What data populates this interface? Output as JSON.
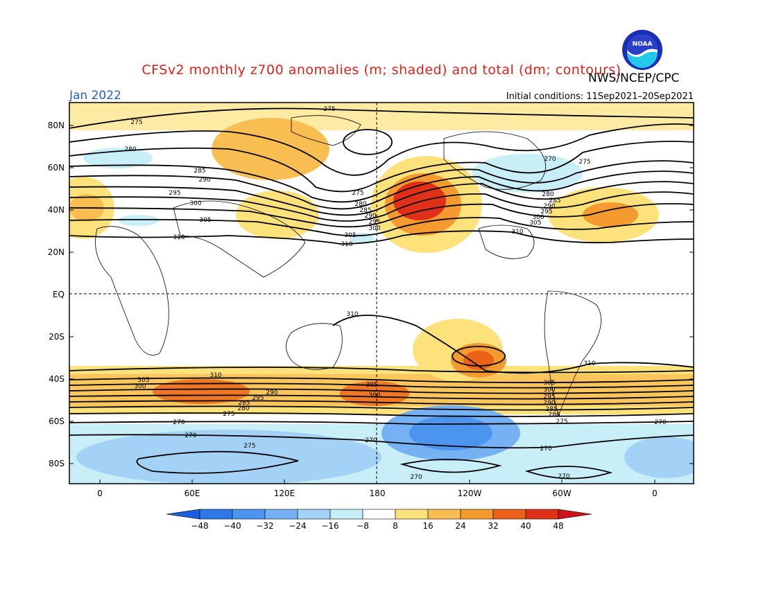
{
  "title": "CFSv2 monthly z700 anomalies (m; shaded) and total (dm; contours)",
  "org": "NWS/NCEP/CPC",
  "logo_text": "NOAA",
  "period": "Jan 2022",
  "initial_conditions": "Initial conditions: 11Sep2021–20Sep2021",
  "lat_labels": [
    "80N",
    "60N",
    "40N",
    "20N",
    "EQ",
    "20S",
    "40S",
    "60S",
    "80S"
  ],
  "lon_labels": [
    "0",
    "60E",
    "120E",
    "180",
    "120W",
    "60W",
    "0"
  ],
  "colorbar": {
    "ticks": [
      "−48",
      "−40",
      "−32",
      "−24",
      "−16",
      "−8",
      "8",
      "16",
      "24",
      "32",
      "40",
      "48"
    ],
    "colors": [
      "#1b5fe0",
      "#2f78e8",
      "#4b95ee",
      "#76b2f3",
      "#a4d2f7",
      "#c8eef8",
      "#ffffff",
      "#fde27c",
      "#f9be52",
      "#f49a2e",
      "#ec6218",
      "#e0301a",
      "#c8141a"
    ]
  },
  "contour_labels": {
    "nh": [
      "275",
      "280",
      "285",
      "290",
      "295",
      "300",
      "305",
      "310"
    ],
    "sh": [
      "310",
      "305",
      "300",
      "295",
      "290",
      "285",
      "280",
      "275",
      "270"
    ]
  },
  "colors": {
    "title": "#e0201a",
    "period": "#1f5fd8",
    "contour": "#000000"
  }
}
